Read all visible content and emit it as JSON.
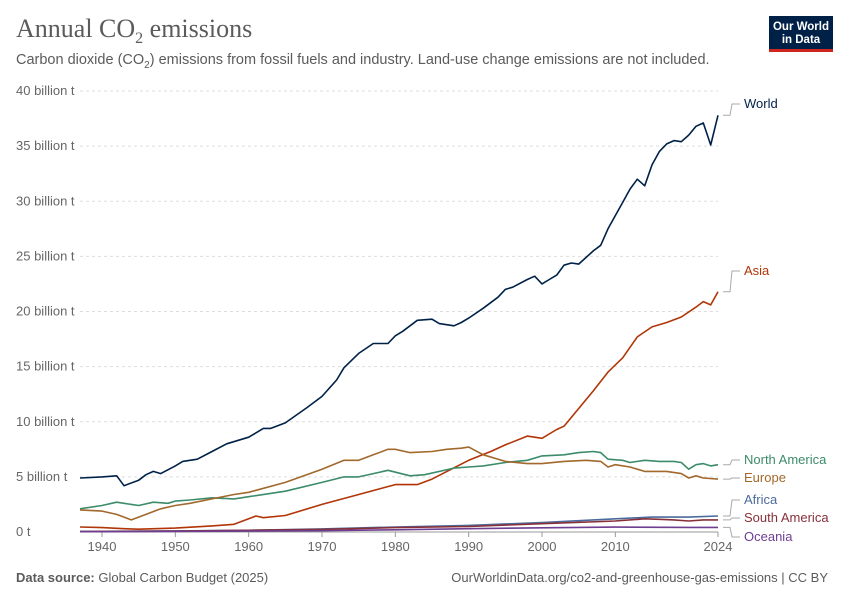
{
  "header": {
    "title_main": "Annual CO",
    "title_sub": "2",
    "title_end": " emissions",
    "subtitle_a": "Carbon dioxide (CO",
    "subtitle_sub": "2",
    "subtitle_b": ") emissions from fossil fuels and industry. Land-use change emissions are not included."
  },
  "logo": {
    "line1": "Our World",
    "line2": "in Data"
  },
  "footer": {
    "source_label": "Data source:",
    "source_value": " Global Carbon Budget (2025)",
    "url": "OurWorldinData.org/co2-and-greenhouse-gas-emissions | CC BY"
  },
  "chart_data": {
    "type": "line",
    "title": "Annual CO₂ emissions",
    "xlim": [
      1937,
      2024
    ],
    "ylim": [
      0,
      40
    ],
    "x_ticks": [
      {
        "value": 1940,
        "label": "1940"
      },
      {
        "value": 1950,
        "label": "1950"
      },
      {
        "value": 1960,
        "label": "1960"
      },
      {
        "value": 1970,
        "label": "1970"
      },
      {
        "value": 1980,
        "label": "1980"
      },
      {
        "value": 1990,
        "label": "1990"
      },
      {
        "value": 2000,
        "label": "2000"
      },
      {
        "value": 2010,
        "label": "2010"
      },
      {
        "value": 2024,
        "label": "2024"
      }
    ],
    "y_ticks": [
      {
        "value": 0,
        "label": "0 t"
      },
      {
        "value": 5,
        "label": "5 billion t"
      },
      {
        "value": 10,
        "label": "10 billion t"
      },
      {
        "value": 15,
        "label": "15 billion t"
      },
      {
        "value": 20,
        "label": "20 billion t"
      },
      {
        "value": 25,
        "label": "25 billion t"
      },
      {
        "value": 30,
        "label": "30 billion t"
      },
      {
        "value": 35,
        "label": "35 billion t"
      },
      {
        "value": 40,
        "label": "40 billion t"
      }
    ],
    "grid": "horizontal-dashed",
    "legend": "right, labels at line ends",
    "series": [
      {
        "name": "World",
        "color": "#002147",
        "points": [
          [
            1937,
            4.9
          ],
          [
            1940,
            5.0
          ],
          [
            1942,
            5.1
          ],
          [
            1943,
            4.2
          ],
          [
            1945,
            4.7
          ],
          [
            1946,
            5.2
          ],
          [
            1947,
            5.5
          ],
          [
            1948,
            5.3
          ],
          [
            1950,
            6.0
          ],
          [
            1951,
            6.4
          ],
          [
            1953,
            6.6
          ],
          [
            1955,
            7.3
          ],
          [
            1957,
            8.0
          ],
          [
            1960,
            8.6
          ],
          [
            1962,
            9.4
          ],
          [
            1963,
            9.4
          ],
          [
            1965,
            9.9
          ],
          [
            1968,
            11.3
          ],
          [
            1970,
            12.3
          ],
          [
            1972,
            13.8
          ],
          [
            1973,
            14.9
          ],
          [
            1975,
            16.2
          ],
          [
            1977,
            17.1
          ],
          [
            1979,
            17.1
          ],
          [
            1980,
            17.8
          ],
          [
            1981,
            18.2
          ],
          [
            1983,
            19.2
          ],
          [
            1985,
            19.3
          ],
          [
            1986,
            18.9
          ],
          [
            1988,
            18.7
          ],
          [
            1989,
            19.0
          ],
          [
            1990,
            19.4
          ],
          [
            1992,
            20.3
          ],
          [
            1994,
            21.3
          ],
          [
            1995,
            22.0
          ],
          [
            1996,
            22.2
          ],
          [
            1998,
            22.9
          ],
          [
            1999,
            23.2
          ],
          [
            2000,
            22.5
          ],
          [
            2001,
            22.9
          ],
          [
            2002,
            23.3
          ],
          [
            2003,
            24.2
          ],
          [
            2004,
            24.4
          ],
          [
            2005,
            24.3
          ],
          [
            2006,
            24.9
          ],
          [
            2007,
            25.5
          ],
          [
            2008,
            26.0
          ],
          [
            2009,
            27.5
          ],
          [
            2010,
            28.7
          ],
          [
            2011,
            29.9
          ],
          [
            2012,
            31.1
          ],
          [
            2013,
            32.0
          ],
          [
            2014,
            31.4
          ],
          [
            2015,
            33.3
          ],
          [
            2016,
            34.5
          ],
          [
            2017,
            35.2
          ],
          [
            2018,
            35.5
          ],
          [
            2019,
            35.4
          ],
          [
            2020,
            36.0
          ],
          [
            2021,
            36.8
          ],
          [
            2022,
            37.1
          ],
          [
            2023,
            35.1
          ],
          [
            2024,
            37.8
          ]
        ]
      },
      {
        "name": "Asia",
        "color": "#b13507",
        "points": [
          [
            1937,
            0.45
          ],
          [
            1940,
            0.4
          ],
          [
            1943,
            0.3
          ],
          [
            1945,
            0.25
          ],
          [
            1950,
            0.35
          ],
          [
            1955,
            0.55
          ],
          [
            1958,
            0.7
          ],
          [
            1960,
            1.2
          ],
          [
            1961,
            1.45
          ],
          [
            1962,
            1.3
          ],
          [
            1965,
            1.5
          ],
          [
            1970,
            2.5
          ],
          [
            1975,
            3.4
          ],
          [
            1980,
            4.3
          ],
          [
            1983,
            4.3
          ],
          [
            1985,
            4.8
          ],
          [
            1990,
            6.5
          ],
          [
            1993,
            7.3
          ],
          [
            1995,
            7.9
          ],
          [
            1998,
            8.7
          ],
          [
            2000,
            8.5
          ],
          [
            2002,
            9.3
          ],
          [
            2003,
            9.6
          ],
          [
            2005,
            11.2
          ],
          [
            2007,
            12.8
          ],
          [
            2009,
            14.5
          ],
          [
            2011,
            15.8
          ],
          [
            2013,
            17.7
          ],
          [
            2015,
            18.6
          ],
          [
            2017,
            19.0
          ],
          [
            2019,
            19.5
          ],
          [
            2021,
            20.4
          ],
          [
            2022,
            20.9
          ],
          [
            2023,
            20.6
          ],
          [
            2024,
            21.8
          ]
        ]
      },
      {
        "name": "North America",
        "color": "#3c8b6b",
        "points": [
          [
            1937,
            2.1
          ],
          [
            1940,
            2.4
          ],
          [
            1942,
            2.7
          ],
          [
            1944,
            2.5
          ],
          [
            1945,
            2.4
          ],
          [
            1947,
            2.7
          ],
          [
            1949,
            2.6
          ],
          [
            1950,
            2.8
          ],
          [
            1952,
            2.9
          ],
          [
            1955,
            3.1
          ],
          [
            1958,
            3.0
          ],
          [
            1960,
            3.2
          ],
          [
            1965,
            3.7
          ],
          [
            1970,
            4.5
          ],
          [
            1973,
            5.0
          ],
          [
            1975,
            5.0
          ],
          [
            1977,
            5.3
          ],
          [
            1979,
            5.6
          ],
          [
            1982,
            5.1
          ],
          [
            1984,
            5.2
          ],
          [
            1988,
            5.8
          ],
          [
            1990,
            5.9
          ],
          [
            1992,
            6.0
          ],
          [
            1995,
            6.3
          ],
          [
            1998,
            6.5
          ],
          [
            2000,
            6.9
          ],
          [
            2003,
            7.0
          ],
          [
            2005,
            7.2
          ],
          [
            2007,
            7.3
          ],
          [
            2008,
            7.2
          ],
          [
            2009,
            6.6
          ],
          [
            2011,
            6.5
          ],
          [
            2012,
            6.3
          ],
          [
            2014,
            6.5
          ],
          [
            2016,
            6.4
          ],
          [
            2018,
            6.4
          ],
          [
            2019,
            6.3
          ],
          [
            2020,
            5.7
          ],
          [
            2021,
            6.1
          ],
          [
            2022,
            6.2
          ],
          [
            2023,
            6.0
          ],
          [
            2024,
            6.1
          ]
        ]
      },
      {
        "name": "Europe",
        "color": "#a2682c",
        "points": [
          [
            1937,
            2.0
          ],
          [
            1940,
            1.9
          ],
          [
            1942,
            1.6
          ],
          [
            1944,
            1.1
          ],
          [
            1946,
            1.6
          ],
          [
            1948,
            2.1
          ],
          [
            1950,
            2.4
          ],
          [
            1952,
            2.6
          ],
          [
            1955,
            3.0
          ],
          [
            1958,
            3.4
          ],
          [
            1960,
            3.6
          ],
          [
            1965,
            4.5
          ],
          [
            1970,
            5.7
          ],
          [
            1973,
            6.5
          ],
          [
            1975,
            6.5
          ],
          [
            1977,
            7.0
          ],
          [
            1979,
            7.5
          ],
          [
            1980,
            7.5
          ],
          [
            1982,
            7.2
          ],
          [
            1985,
            7.3
          ],
          [
            1987,
            7.5
          ],
          [
            1989,
            7.6
          ],
          [
            1990,
            7.7
          ],
          [
            1992,
            7.0
          ],
          [
            1995,
            6.4
          ],
          [
            1998,
            6.2
          ],
          [
            2000,
            6.2
          ],
          [
            2003,
            6.4
          ],
          [
            2006,
            6.5
          ],
          [
            2008,
            6.4
          ],
          [
            2009,
            5.9
          ],
          [
            2010,
            6.1
          ],
          [
            2012,
            5.9
          ],
          [
            2014,
            5.5
          ],
          [
            2017,
            5.5
          ],
          [
            2019,
            5.3
          ],
          [
            2020,
            4.9
          ],
          [
            2021,
            5.1
          ],
          [
            2022,
            4.9
          ],
          [
            2024,
            4.8
          ]
        ]
      },
      {
        "name": "Africa",
        "color": "#4c6a9c",
        "points": [
          [
            1937,
            0.05
          ],
          [
            1950,
            0.1
          ],
          [
            1960,
            0.15
          ],
          [
            1970,
            0.28
          ],
          [
            1980,
            0.45
          ],
          [
            1990,
            0.6
          ],
          [
            2000,
            0.85
          ],
          [
            2010,
            1.2
          ],
          [
            2015,
            1.35
          ],
          [
            2020,
            1.35
          ],
          [
            2024,
            1.45
          ]
        ]
      },
      {
        "name": "South America",
        "color": "#883039",
        "points": [
          [
            1937,
            0.04
          ],
          [
            1950,
            0.08
          ],
          [
            1960,
            0.15
          ],
          [
            1970,
            0.24
          ],
          [
            1980,
            0.4
          ],
          [
            1990,
            0.5
          ],
          [
            2000,
            0.75
          ],
          [
            2010,
            1.0
          ],
          [
            2014,
            1.2
          ],
          [
            2016,
            1.15
          ],
          [
            2018,
            1.1
          ],
          [
            2020,
            1.0
          ],
          [
            2022,
            1.1
          ],
          [
            2024,
            1.1
          ]
        ]
      },
      {
        "name": "Oceania",
        "color": "#6d3e91",
        "points": [
          [
            1937,
            0.03
          ],
          [
            1950,
            0.05
          ],
          [
            1960,
            0.08
          ],
          [
            1970,
            0.12
          ],
          [
            1980,
            0.2
          ],
          [
            1990,
            0.3
          ],
          [
            2000,
            0.38
          ],
          [
            2010,
            0.44
          ],
          [
            2020,
            0.42
          ],
          [
            2024,
            0.42
          ]
        ]
      }
    ]
  }
}
